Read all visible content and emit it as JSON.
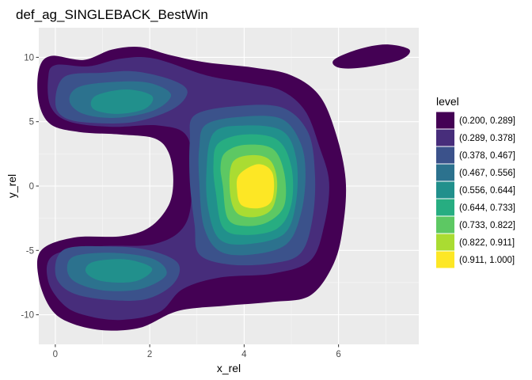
{
  "chart_data": {
    "type": "heatmap",
    "subtype": "filled-density-contour",
    "title": "def_ag_SINGLEBACK_BestWin",
    "xlabel": "x_rel",
    "ylabel": "y_rel",
    "xlim": [
      -0.35,
      7.7
    ],
    "ylim": [
      -12.3,
      12.3
    ],
    "x_ticks": [
      0,
      2,
      4,
      6
    ],
    "y_ticks": [
      -10,
      -5,
      0,
      5,
      10
    ],
    "x_tick_labels": [
      "0",
      "2",
      "4",
      "6"
    ],
    "y_tick_labels": [
      "-10",
      "-5",
      "0",
      "5",
      "10"
    ],
    "grid": true,
    "panel_background": "#ebebeb",
    "legend": {
      "title": "level",
      "position": "right",
      "entries": [
        {
          "label": "(0.200, 0.289]",
          "color": "#440154"
        },
        {
          "label": "(0.289, 0.378]",
          "color": "#472D7B"
        },
        {
          "label": "(0.378, 0.467]",
          "color": "#3B528B"
        },
        {
          "label": "(0.467, 0.556]",
          "color": "#2C728E"
        },
        {
          "label": "(0.556, 0.644]",
          "color": "#21908C"
        },
        {
          "label": "(0.644, 0.733]",
          "color": "#27AD81"
        },
        {
          "label": "(0.733, 0.822]",
          "color": "#5DC863"
        },
        {
          "label": "(0.822, 0.911]",
          "color": "#AADC32"
        },
        {
          "label": "(0.911, 1.000]",
          "color": "#FDE725"
        }
      ]
    },
    "regions": [
      {
        "level": 0,
        "points": [
          [
            -0.1,
            10.1
          ],
          [
            0.6,
            9.8
          ],
          [
            1.2,
            10.6
          ],
          [
            1.8,
            10.8
          ],
          [
            2.4,
            10.2
          ],
          [
            3.2,
            9.6
          ],
          [
            4.2,
            9.2
          ],
          [
            5.0,
            8.6
          ],
          [
            5.6,
            7.0
          ],
          [
            5.95,
            4.0
          ],
          [
            6.15,
            0.5
          ],
          [
            6.1,
            -3.0
          ],
          [
            5.9,
            -6.0
          ],
          [
            5.4,
            -8.5
          ],
          [
            4.6,
            -9.0
          ],
          [
            3.6,
            -9.3
          ],
          [
            2.6,
            -9.7
          ],
          [
            1.8,
            -11.0
          ],
          [
            1.0,
            -11.2
          ],
          [
            0.3,
            -10.6
          ],
          [
            -0.1,
            -9.5
          ],
          [
            -0.35,
            -7.2
          ],
          [
            -0.3,
            -5.0
          ],
          [
            0.4,
            -4.0
          ],
          [
            1.4,
            -3.9
          ],
          [
            2.0,
            -3.2
          ],
          [
            2.4,
            -1.5
          ],
          [
            2.5,
            0.5
          ],
          [
            2.4,
            2.6
          ],
          [
            2.1,
            3.7
          ],
          [
            1.4,
            4.0
          ],
          [
            0.5,
            4.2
          ],
          [
            -0.1,
            4.8
          ],
          [
            -0.35,
            6.5
          ],
          [
            -0.35,
            9.0
          ]
        ]
      },
      {
        "level": 0,
        "points": [
          [
            5.9,
            9.8
          ],
          [
            6.4,
            10.6
          ],
          [
            7.0,
            11.0
          ],
          [
            7.5,
            10.6
          ],
          [
            7.3,
            9.8
          ],
          [
            6.5,
            9.2
          ],
          [
            6.0,
            9.2
          ]
        ]
      },
      {
        "level": 1,
        "points": [
          [
            0.0,
            9.4
          ],
          [
            0.7,
            9.3
          ],
          [
            1.4,
            9.9
          ],
          [
            2.1,
            9.9
          ],
          [
            3.2,
            8.6
          ],
          [
            4.1,
            8.0
          ],
          [
            4.8,
            7.4
          ],
          [
            5.3,
            5.8
          ],
          [
            5.6,
            3.0
          ],
          [
            5.8,
            0.3
          ],
          [
            5.7,
            -3.0
          ],
          [
            5.4,
            -5.8
          ],
          [
            4.6,
            -6.8
          ],
          [
            3.5,
            -7.1
          ],
          [
            2.7,
            -8.0
          ],
          [
            2.2,
            -9.8
          ],
          [
            1.4,
            -10.4
          ],
          [
            0.7,
            -10.1
          ],
          [
            0.2,
            -9.3
          ],
          [
            -0.15,
            -7.4
          ],
          [
            -0.05,
            -5.4
          ],
          [
            0.9,
            -4.7
          ],
          [
            2.1,
            -4.5
          ],
          [
            2.75,
            -3.0
          ],
          [
            2.9,
            0.3
          ],
          [
            2.8,
            3.8
          ],
          [
            2.2,
            4.7
          ],
          [
            1.2,
            4.6
          ],
          [
            0.3,
            5.0
          ],
          [
            -0.1,
            6.2
          ],
          [
            -0.15,
            8.4
          ]
        ]
      },
      {
        "level": 2,
        "points": [
          [
            0.2,
            8.5
          ],
          [
            1.0,
            8.8
          ],
          [
            1.7,
            8.9
          ],
          [
            2.5,
            8.2
          ],
          [
            2.8,
            7.3
          ],
          [
            2.5,
            6.0
          ],
          [
            1.7,
            5.0
          ],
          [
            0.8,
            4.9
          ],
          [
            0.2,
            5.3
          ],
          [
            0.0,
            6.5
          ]
        ]
      },
      {
        "level": 2,
        "points": [
          [
            2.95,
            5.5
          ],
          [
            3.8,
            6.2
          ],
          [
            4.8,
            6.1
          ],
          [
            5.35,
            4.2
          ],
          [
            5.5,
            1.0
          ],
          [
            5.45,
            -2.5
          ],
          [
            5.2,
            -5.2
          ],
          [
            4.6,
            -6.0
          ],
          [
            3.7,
            -6.1
          ],
          [
            3.05,
            -5.3
          ],
          [
            2.95,
            -3.0
          ],
          [
            2.85,
            0.3
          ],
          [
            2.85,
            3.5
          ]
        ]
      },
      {
        "level": 2,
        "points": [
          [
            0.2,
            -4.9
          ],
          [
            1.2,
            -4.7
          ],
          [
            2.0,
            -5.0
          ],
          [
            2.6,
            -6.0
          ],
          [
            2.5,
            -7.6
          ],
          [
            1.9,
            -8.8
          ],
          [
            1.0,
            -8.8
          ],
          [
            0.3,
            -8.2
          ],
          [
            0.0,
            -6.8
          ]
        ]
      },
      {
        "level": 3,
        "points": [
          [
            0.5,
            7.7
          ],
          [
            1.3,
            8.1
          ],
          [
            2.0,
            8.0
          ],
          [
            2.45,
            7.1
          ],
          [
            2.1,
            5.9
          ],
          [
            1.3,
            5.3
          ],
          [
            0.6,
            5.6
          ],
          [
            0.3,
            6.6
          ]
        ]
      },
      {
        "level": 3,
        "points": [
          [
            3.2,
            4.8
          ],
          [
            4.0,
            5.4
          ],
          [
            4.8,
            5.2
          ],
          [
            5.2,
            3.3
          ],
          [
            5.3,
            0.8
          ],
          [
            5.2,
            -2.2
          ],
          [
            4.9,
            -4.5
          ],
          [
            4.2,
            -5.3
          ],
          [
            3.5,
            -5.1
          ],
          [
            3.15,
            -3.2
          ],
          [
            3.05,
            0.3
          ],
          [
            3.05,
            3.0
          ]
        ]
      },
      {
        "level": 3,
        "points": [
          [
            0.45,
            -5.4
          ],
          [
            1.3,
            -5.2
          ],
          [
            2.1,
            -5.7
          ],
          [
            2.35,
            -6.9
          ],
          [
            1.8,
            -8.0
          ],
          [
            1.0,
            -8.1
          ],
          [
            0.4,
            -7.4
          ],
          [
            0.25,
            -6.3
          ]
        ]
      },
      {
        "level": 4,
        "points": [
          [
            0.85,
            7.0
          ],
          [
            1.5,
            7.5
          ],
          [
            2.05,
            7.0
          ],
          [
            1.9,
            6.0
          ],
          [
            1.3,
            5.6
          ],
          [
            0.8,
            6.0
          ]
        ]
      },
      {
        "level": 4,
        "points": [
          [
            3.35,
            4.1
          ],
          [
            4.0,
            4.7
          ],
          [
            4.8,
            4.3
          ],
          [
            5.1,
            2.2
          ],
          [
            5.1,
            -1.2
          ],
          [
            4.85,
            -3.7
          ],
          [
            4.1,
            -4.5
          ],
          [
            3.5,
            -4.2
          ],
          [
            3.25,
            -2.0
          ],
          [
            3.2,
            1.0
          ]
        ]
      },
      {
        "level": 4,
        "points": [
          [
            0.8,
            -5.9
          ],
          [
            1.5,
            -5.7
          ],
          [
            2.05,
            -6.4
          ],
          [
            1.7,
            -7.4
          ],
          [
            1.0,
            -7.4
          ],
          [
            0.65,
            -6.7
          ]
        ]
      },
      {
        "level": 5,
        "points": [
          [
            3.45,
            3.3
          ],
          [
            4.0,
            4.0
          ],
          [
            4.7,
            3.6
          ],
          [
            5.0,
            1.5
          ],
          [
            5.0,
            -1.4
          ],
          [
            4.7,
            -3.3
          ],
          [
            4.0,
            -3.8
          ],
          [
            3.55,
            -3.2
          ],
          [
            3.4,
            -0.5
          ],
          [
            3.35,
            1.6
          ]
        ]
      },
      {
        "level": 6,
        "points": [
          [
            3.6,
            2.6
          ],
          [
            4.0,
            3.2
          ],
          [
            4.6,
            2.9
          ],
          [
            4.85,
            1.0
          ],
          [
            4.85,
            -1.5
          ],
          [
            4.5,
            -2.8
          ],
          [
            4.0,
            -3.1
          ],
          [
            3.65,
            -2.5
          ],
          [
            3.55,
            0.0
          ],
          [
            3.5,
            1.5
          ]
        ]
      },
      {
        "level": 7,
        "points": [
          [
            3.75,
            1.8
          ],
          [
            4.15,
            2.4
          ],
          [
            4.55,
            2.0
          ],
          [
            4.7,
            0.3
          ],
          [
            4.6,
            -1.7
          ],
          [
            4.25,
            -2.4
          ],
          [
            3.85,
            -2.1
          ],
          [
            3.7,
            -0.5
          ]
        ]
      },
      {
        "level": 8,
        "points": [
          [
            3.9,
            0.9
          ],
          [
            4.3,
            1.7
          ],
          [
            4.6,
            1.0
          ],
          [
            4.6,
            -1.0
          ],
          [
            4.35,
            -1.7
          ],
          [
            3.95,
            -1.5
          ],
          [
            3.85,
            -0.3
          ]
        ]
      }
    ]
  }
}
